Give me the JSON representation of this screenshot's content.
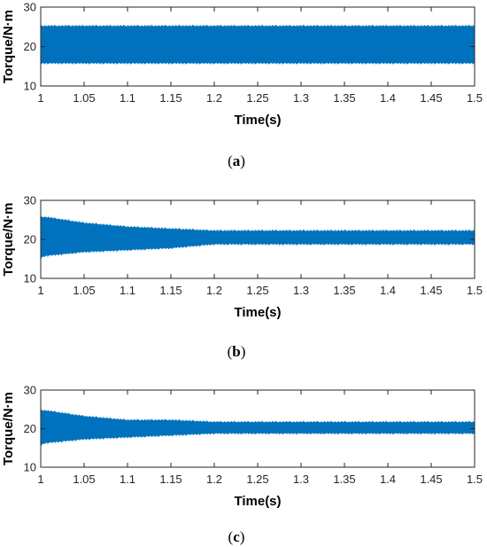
{
  "colors": {
    "series": "#0072BD",
    "axis": "#262626",
    "background": "#ffffff"
  },
  "chart_data": [
    {
      "type": "area",
      "caption": {
        "open": "(",
        "letter": "a",
        "close": ")"
      },
      "xlabel": "Time(s)",
      "ylabel": "Torque/N·m",
      "xlim": [
        1,
        1.5
      ],
      "ylim": [
        10,
        30
      ],
      "xticks": [
        "1",
        "1.05",
        "1.1",
        "1.15",
        "1.2",
        "1.25",
        "1.3",
        "1.35",
        "1.4",
        "1.45",
        "1.5"
      ],
      "yticks": [
        "10",
        "20",
        "30"
      ],
      "grid": false,
      "series": [
        {
          "values_description_x": [
            1,
            1.05,
            1.1,
            1.15,
            1.2,
            1.25,
            1.3,
            1.35,
            1.4,
            1.45,
            1.5
          ],
          "x": [
            1,
            1.05,
            1.1,
            1.15,
            1.2,
            1.25,
            1.3,
            1.35,
            1.4,
            1.45,
            1.5
          ],
          "upper": [
            25.5,
            25.5,
            25.5,
            25.5,
            25.5,
            25.5,
            25.5,
            25.5,
            25.5,
            25.5,
            25.5
          ],
          "lower": [
            15.5,
            15.5,
            15.5,
            15.5,
            15.5,
            15.5,
            15.5,
            15.5,
            15.5,
            15.5,
            15.5
          ]
        }
      ]
    },
    {
      "type": "area",
      "caption": {
        "open": "(",
        "letter": "b",
        "close": ")"
      },
      "xlabel": "Time(s)",
      "ylabel": "Torque/N·m",
      "xlim": [
        1,
        1.5
      ],
      "ylim": [
        10,
        30
      ],
      "xticks": [
        "1",
        "1.05",
        "1.1",
        "1.15",
        "1.2",
        "1.25",
        "1.3",
        "1.35",
        "1.4",
        "1.45",
        "1.5"
      ],
      "yticks": [
        "10",
        "20",
        "30"
      ],
      "grid": false,
      "series": [
        {
          "x": [
            1,
            1.005,
            1.05,
            1.1,
            1.15,
            1.2,
            1.25,
            1.3,
            1.35,
            1.4,
            1.45,
            1.5
          ],
          "upper": [
            26,
            26,
            24.5,
            23.5,
            23,
            22.5,
            22.5,
            22.5,
            22.5,
            22.5,
            22.5,
            22.5
          ],
          "lower": [
            15,
            15.5,
            16.5,
            17,
            17.5,
            18.5,
            18.5,
            18.5,
            18.5,
            18.5,
            18.5,
            18.5
          ]
        }
      ]
    },
    {
      "type": "area",
      "caption": {
        "open": "(",
        "letter": "c",
        "close": ")"
      },
      "xlabel": "Time(s)",
      "ylabel": "Torque/N·m",
      "xlim": [
        1,
        1.5
      ],
      "ylim": [
        10,
        30
      ],
      "xticks": [
        "1",
        "1.05",
        "1.1",
        "1.15",
        "1.2",
        "1.25",
        "1.3",
        "1.35",
        "1.4",
        "1.45",
        "1.5"
      ],
      "yticks": [
        "10",
        "20",
        "30"
      ],
      "grid": false,
      "series": [
        {
          "x": [
            1,
            1.005,
            1.05,
            1.1,
            1.15,
            1.2,
            1.25,
            1.3,
            1.35,
            1.4,
            1.45,
            1.5
          ],
          "upper": [
            25,
            25,
            23.5,
            22.5,
            22.5,
            22,
            22,
            22,
            22,
            22,
            22,
            22
          ],
          "lower": [
            15.5,
            16,
            17,
            17.5,
            18,
            18.5,
            18.5,
            18.5,
            18.5,
            18.5,
            18.5,
            18.5
          ]
        }
      ]
    }
  ]
}
